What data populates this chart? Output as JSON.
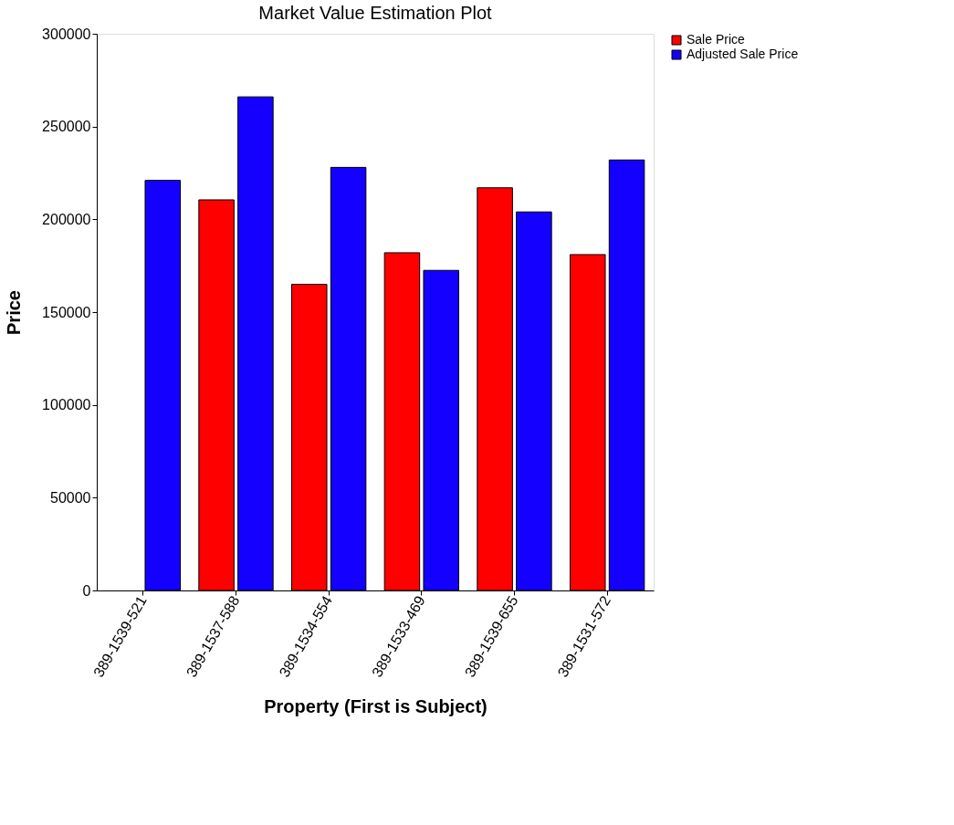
{
  "chart_data": {
    "type": "bar",
    "title": "Market Value Estimation Plot",
    "xlabel": "Property (First is Subject)",
    "ylabel": "Price",
    "categories": [
      "389-1539-521",
      "389-1537-588",
      "389-1534-554",
      "389-1533-469",
      "389-1539-655",
      "389-1531-572"
    ],
    "series": [
      {
        "name": "Sale Price",
        "color": "#ff0000",
        "values": [
          null,
          210500,
          165000,
          182000,
          217000,
          181000
        ]
      },
      {
        "name": "Adjusted Sale Price",
        "color": "#1400ff",
        "values": [
          221000,
          266000,
          228000,
          172500,
          204000,
          232000
        ]
      }
    ],
    "ylim": [
      0,
      300000
    ],
    "yticks": [
      0,
      50000,
      100000,
      150000,
      200000,
      250000,
      300000
    ],
    "grid": false,
    "legend": "right"
  }
}
